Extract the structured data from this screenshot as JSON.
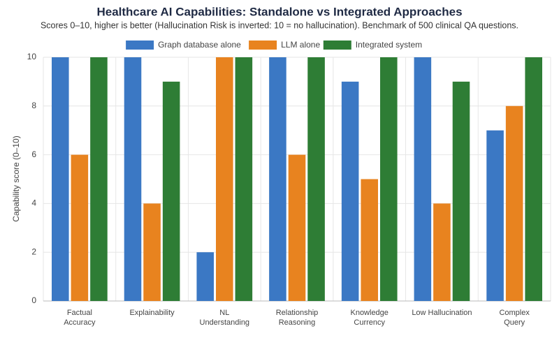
{
  "chart_data": {
    "type": "bar",
    "title": "Healthcare AI Capabilities: Standalone vs Integrated Approaches",
    "subtitle": "Scores 0–10, higher is better (Hallucination Risk is inverted: 10 = no hallucination). Benchmark of 500 clinical QA questions.",
    "y_label": "Capability score (0–10)",
    "categories": [
      [
        "Factual",
        "Accuracy"
      ],
      [
        "Explainability"
      ],
      [
        "NL",
        "Understanding"
      ],
      [
        "Relationship",
        "Reasoning"
      ],
      [
        "Knowledge",
        "Currency"
      ],
      [
        "Low Hallucination"
      ],
      [
        "Complex",
        "Query"
      ]
    ],
    "series": [
      {
        "name": "Graph database alone",
        "color": "#3b78c4",
        "values": [
          10,
          10,
          2,
          10,
          9,
          10,
          7
        ]
      },
      {
        "name": "LLM alone",
        "color": "#e8831f",
        "values": [
          6,
          4,
          10,
          6,
          5,
          4,
          8
        ]
      },
      {
        "name": "Integrated system",
        "color": "#2e7d35",
        "values": [
          10,
          9,
          10,
          10,
          10,
          9,
          10
        ]
      }
    ],
    "ylim": [
      0,
      10
    ],
    "yticks": [
      0,
      2,
      4,
      6,
      8,
      10
    ],
    "grid": true,
    "legend": "top"
  }
}
